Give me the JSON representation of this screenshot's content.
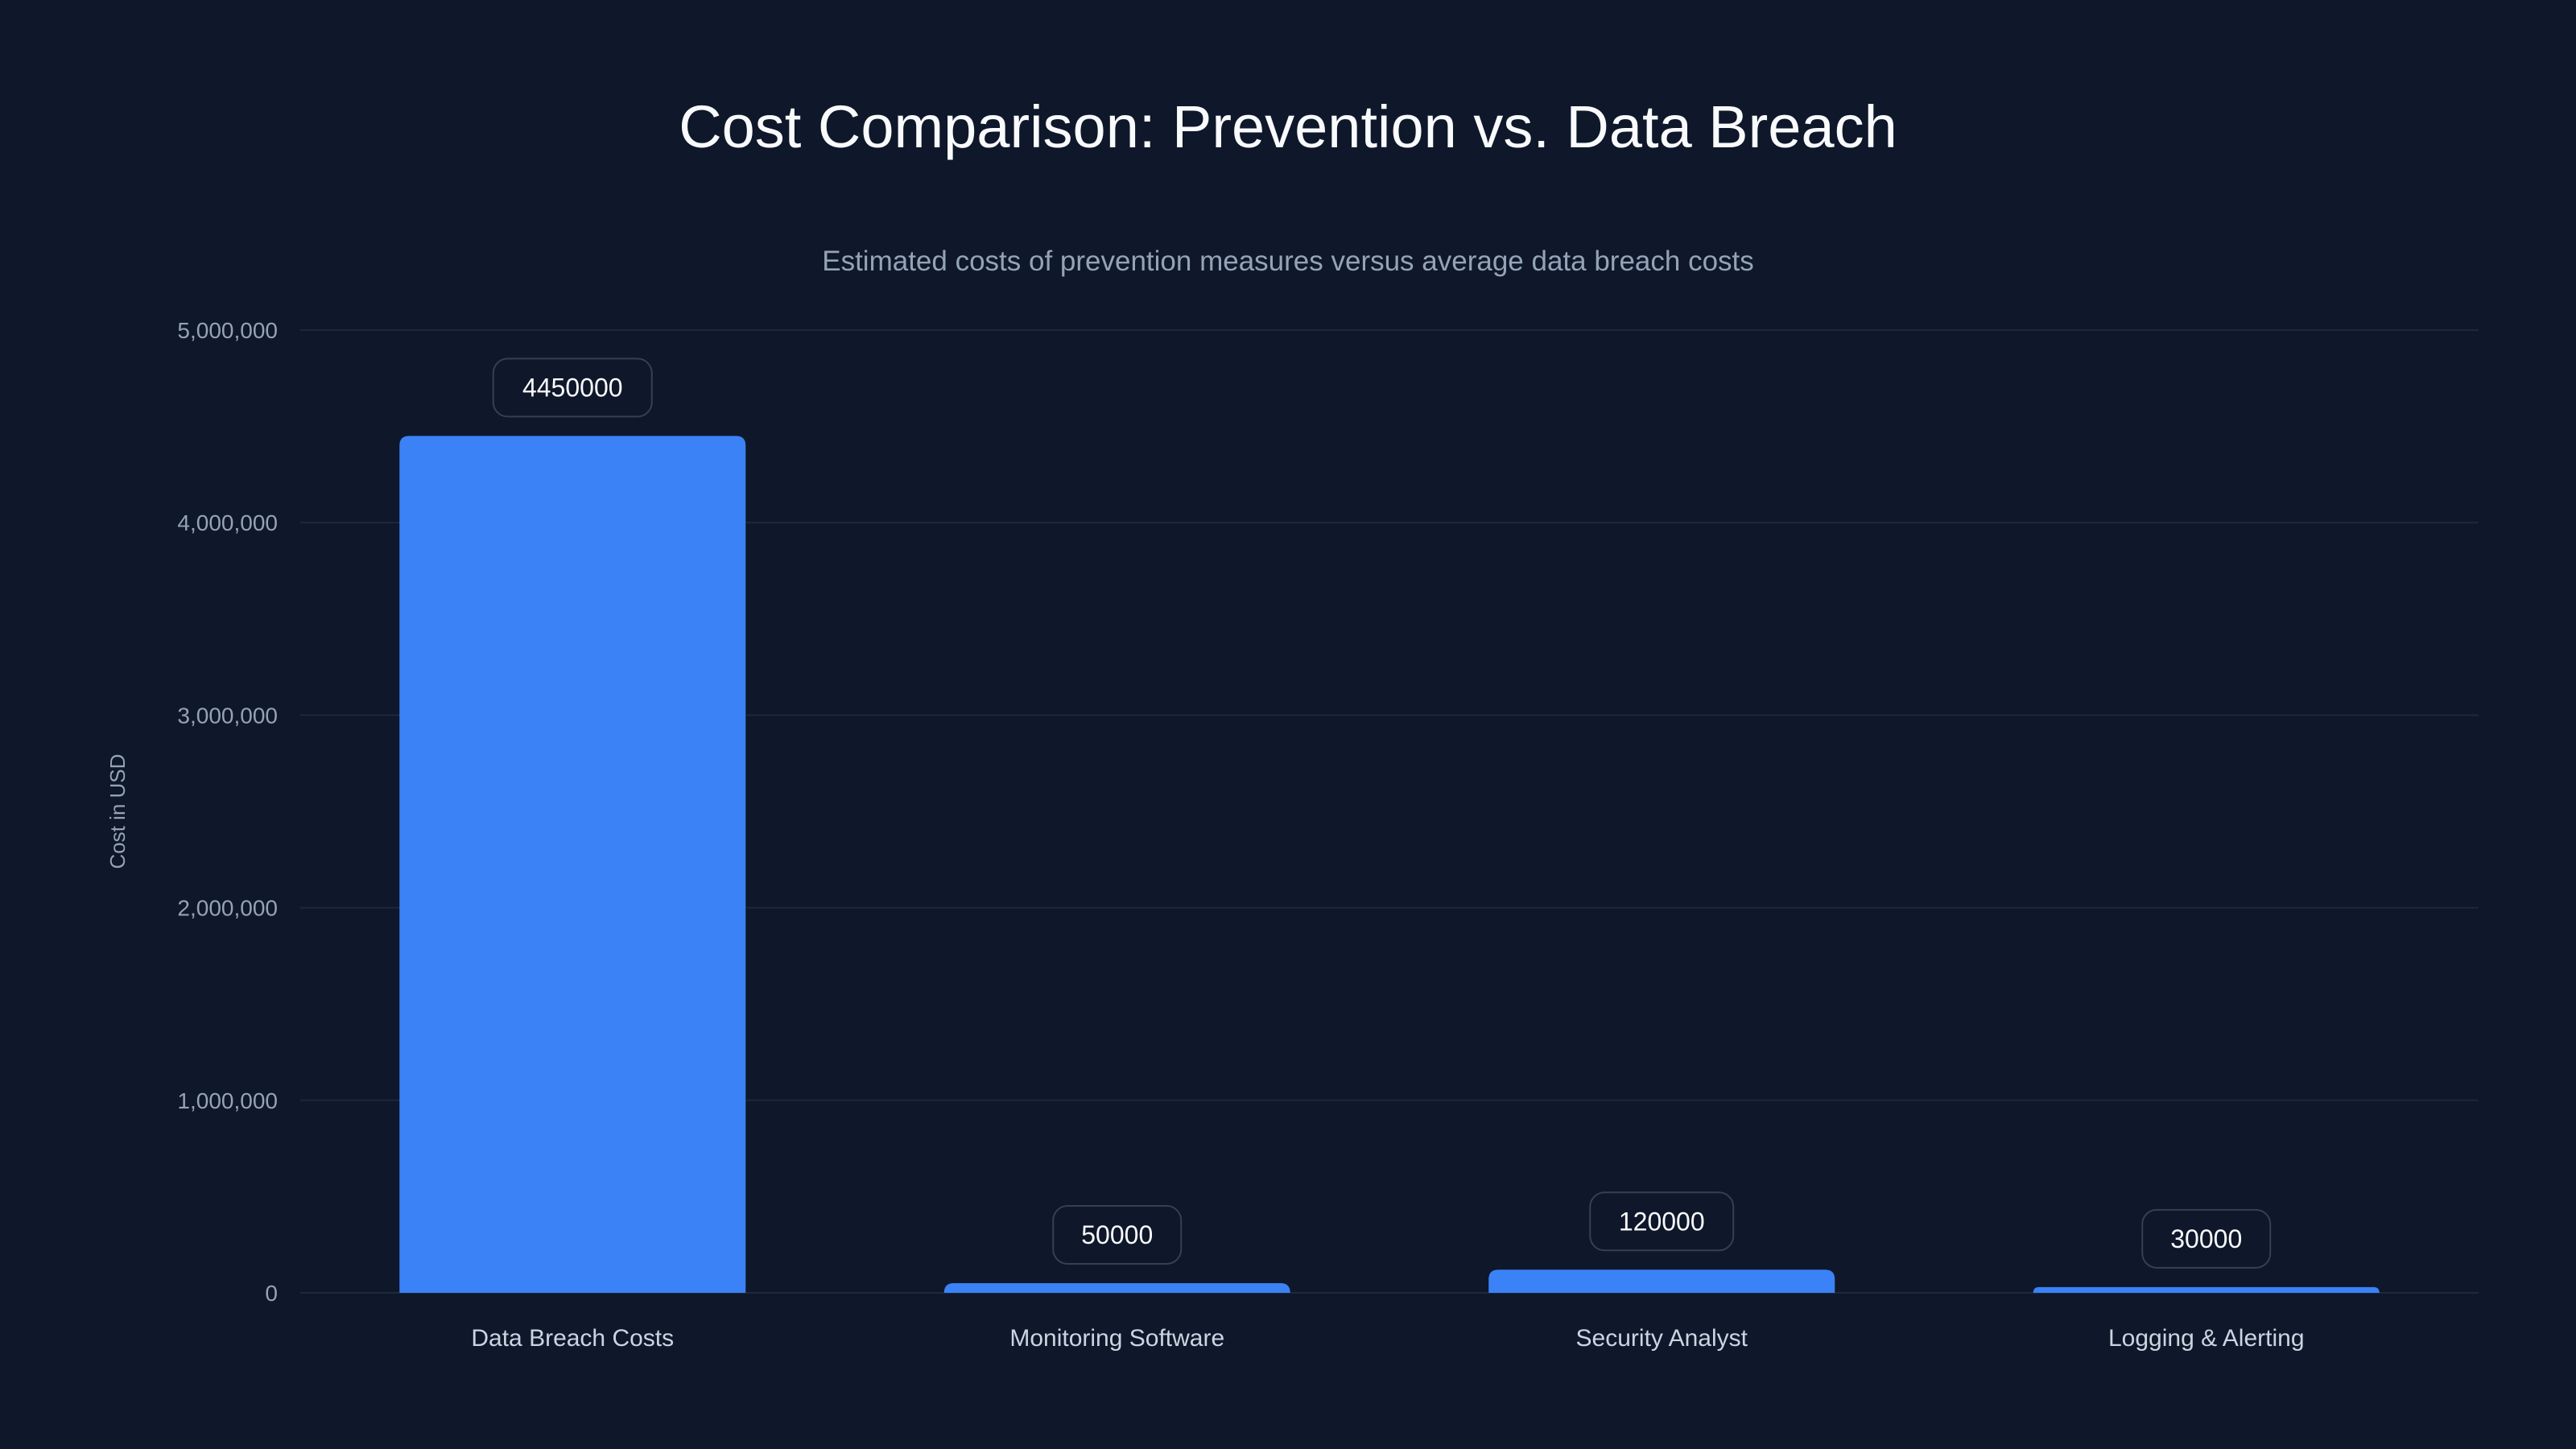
{
  "chart_data": {
    "type": "bar",
    "title": "Cost Comparison: Prevention vs. Data Breach",
    "subtitle": "Estimated costs of prevention measures versus average data breach costs",
    "xlabel": "",
    "ylabel": "Cost in USD",
    "categories": [
      "Data Breach Costs",
      "Monitoring Software",
      "Security Analyst",
      "Logging & Alerting"
    ],
    "values": [
      4450000,
      50000,
      120000,
      30000
    ],
    "value_labels": [
      "4450000",
      "50000",
      "120000",
      "30000"
    ],
    "ylim": [
      0,
      5000000
    ],
    "yticks": [
      0,
      1000000,
      2000000,
      3000000,
      4000000,
      5000000
    ],
    "ytick_labels": [
      "0",
      "1,000,000",
      "2,000,000",
      "3,000,000",
      "4,000,000",
      "5,000,000"
    ],
    "grid": true,
    "colors": {
      "bar": "#3b82f6",
      "background": "#0f172a",
      "grid": "#1e293b"
    }
  }
}
